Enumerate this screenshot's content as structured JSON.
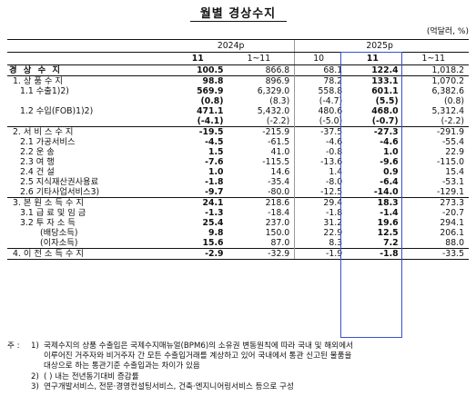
{
  "title": "월별 경상수지",
  "unit": "(억달러, %)",
  "header": {
    "year_2024": "2024p",
    "year_2025": "2025p",
    "periods": [
      "11",
      "1~11",
      "10",
      "11",
      "1~11"
    ]
  },
  "rows": [
    {
      "label": "경 상 수 지",
      "values": [
        "100.5",
        "866.8",
        "68.1",
        "122.4",
        "1,018.2"
      ],
      "bold": true
    },
    {
      "label": "1. 상 품 수 지",
      "values": [
        "98.8",
        "896.9",
        "78.2",
        "133.1",
        "1,070.2"
      ]
    },
    {
      "label": "1.1 수출1)2)",
      "values": [
        "569.9",
        "6,329.0",
        "558.8",
        "601.1",
        "6,382.6"
      ]
    },
    {
      "label": "",
      "values": [
        "(0.8)",
        "(8.3)",
        "(-4.7)",
        "(5.5)",
        "(0.8)"
      ]
    },
    {
      "label": "1.2 수입(FOB)1)2)",
      "values": [
        "471.1",
        "5,432.0",
        "480.6",
        "468.0",
        "5,312.4"
      ]
    },
    {
      "label": "",
      "values": [
        "(-4.1)",
        "(-2.2)",
        "(-5.0)",
        "(-0.7)",
        "(-2.2)"
      ]
    },
    {
      "label": "2. 서 비 스 수 지",
      "values": [
        "-19.5",
        "-215.9",
        "-37.5",
        "-27.3",
        "-291.9"
      ]
    },
    {
      "label": "2.1 가공서비스",
      "values": [
        "-4.5",
        "-61.5",
        "-4.6",
        "-4.6",
        "-55.4"
      ]
    },
    {
      "label": "2.2 운 송",
      "values": [
        "1.5",
        "41.0",
        "-0.8",
        "1.0",
        "22.9"
      ]
    },
    {
      "label": "2.3 여 행",
      "values": [
        "-7.6",
        "-115.5",
        "-13.6",
        "-9.6",
        "-115.0"
      ]
    },
    {
      "label": "2.4 건 설",
      "values": [
        "1.0",
        "14.6",
        "1.4",
        "0.9",
        "15.4"
      ]
    },
    {
      "label": "2.5 지식재산권사용료",
      "values": [
        "-1.8",
        "-35.4",
        "-8.0",
        "-6.4",
        "-53.1"
      ]
    },
    {
      "label": "2.6 기타사업서비스3)",
      "values": [
        "-9.7",
        "-80.0",
        "-12.5",
        "-14.0",
        "-129.1"
      ]
    },
    {
      "label": "3. 본 원 소 득 수 지",
      "values": [
        "24.1",
        "218.6",
        "29.4",
        "18.3",
        "273.3"
      ]
    },
    {
      "label": "3.1 급 료 및 임 금",
      "values": [
        "-1.3",
        "-18.4",
        "-1.8",
        "-1.4",
        "-20.7"
      ]
    },
    {
      "label": "3.2 투 자 소 득",
      "values": [
        "25.4",
        "237.0",
        "31.2",
        "19.6",
        "294.1"
      ]
    },
    {
      "label": "(배당소득)",
      "values": [
        "9.8",
        "150.0",
        "22.9",
        "12.5",
        "206.1"
      ]
    },
    {
      "label": "(이자소득)",
      "values": [
        "15.6",
        "87.0",
        "8.3",
        "7.2",
        "88.0"
      ]
    },
    {
      "label": "4. 이 전 소 득 수 지",
      "values": [
        "-2.9",
        "-32.9",
        "-1.9",
        "-1.8",
        "-33.5"
      ]
    }
  ],
  "notes": {
    "lead": "주 :",
    "n1_tag": "1)",
    "n1_line1": "국제수지의 상품 수출입은 국제수지매뉴얼(BPM6)의 소유권 변동원칙에 따라 국내 및 해외에서",
    "n1_line2": "이루어진 거주자와 비거주자 간 모든 수출입거래를 계상하고 있어 국내에서 통관 신고된 물품을",
    "n1_line3": "대상으로 하는 통관기준 수출입과는 차이가 있음",
    "n2_tag": "2)",
    "n2_text": "( ) 내는 전년동기대비 증감률",
    "n3_tag": "3)",
    "n3_text": "연구개발서비스, 전문·경영컨설팅서비스, 건축·엔지니어링서비스 등으로 구성"
  }
}
